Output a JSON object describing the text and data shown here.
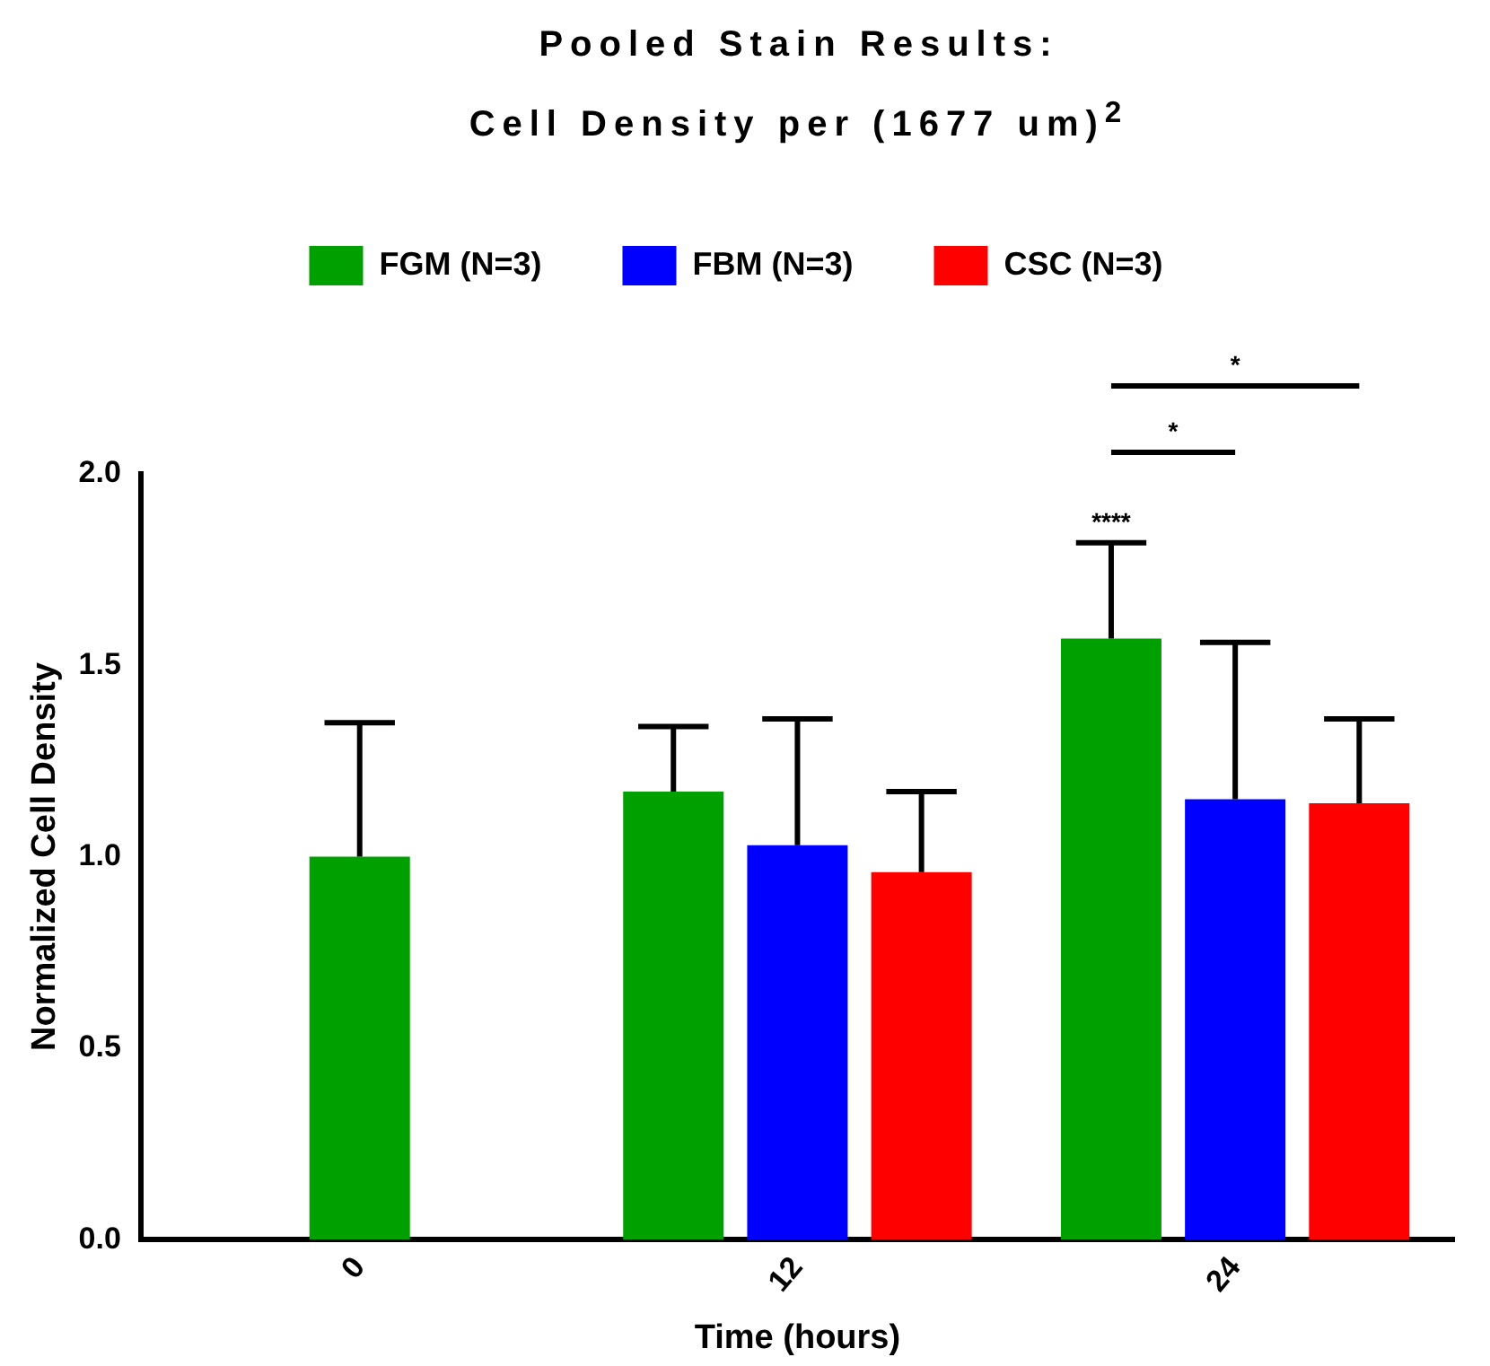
{
  "chart_data": {
    "type": "bar",
    "title": "Pooled Stain Results:",
    "subtitle": "Cell Density per (1677 um)$^{2}$",
    "xlabel": "Time (hours)",
    "ylabel": "Normalized Cell Density",
    "categories": [
      "0",
      "12",
      "24"
    ],
    "series": [
      {
        "name": "FGM (N=3)",
        "color": "#00a000",
        "values": [
          1.0,
          1.17,
          1.57
        ],
        "errors": [
          [
            1.0,
            1.35
          ],
          [
            1.17,
            1.34
          ],
          [
            1.57,
            1.82
          ]
        ]
      },
      {
        "name": "FBM (N=3)",
        "color": "#0000ff",
        "values": [
          null,
          1.03,
          1.15
        ],
        "errors": [
          null,
          [
            1.03,
            1.36
          ],
          [
            1.15,
            1.56
          ]
        ]
      },
      {
        "name": "CSC (N=3)",
        "color": "#ff0000",
        "values": [
          null,
          0.96,
          1.14
        ],
        "errors": [
          null,
          [
            0.96,
            1.17
          ],
          [
            1.14,
            1.36
          ]
        ]
      }
    ],
    "ylim": [
      0,
      2.0
    ],
    "yticks": [
      {
        "value": 0,
        "label": "0.0"
      },
      {
        "value": 0.5,
        "label": "0.5"
      },
      {
        "value": 1,
        "label": "1.0"
      },
      {
        "value": 1.5,
        "label": "1.5"
      },
      {
        "value": 2,
        "label": "2.0"
      }
    ],
    "grid": false,
    "legend": "top",
    "annotations": [
      "****",
      "*",
      "*"
    ]
  }
}
